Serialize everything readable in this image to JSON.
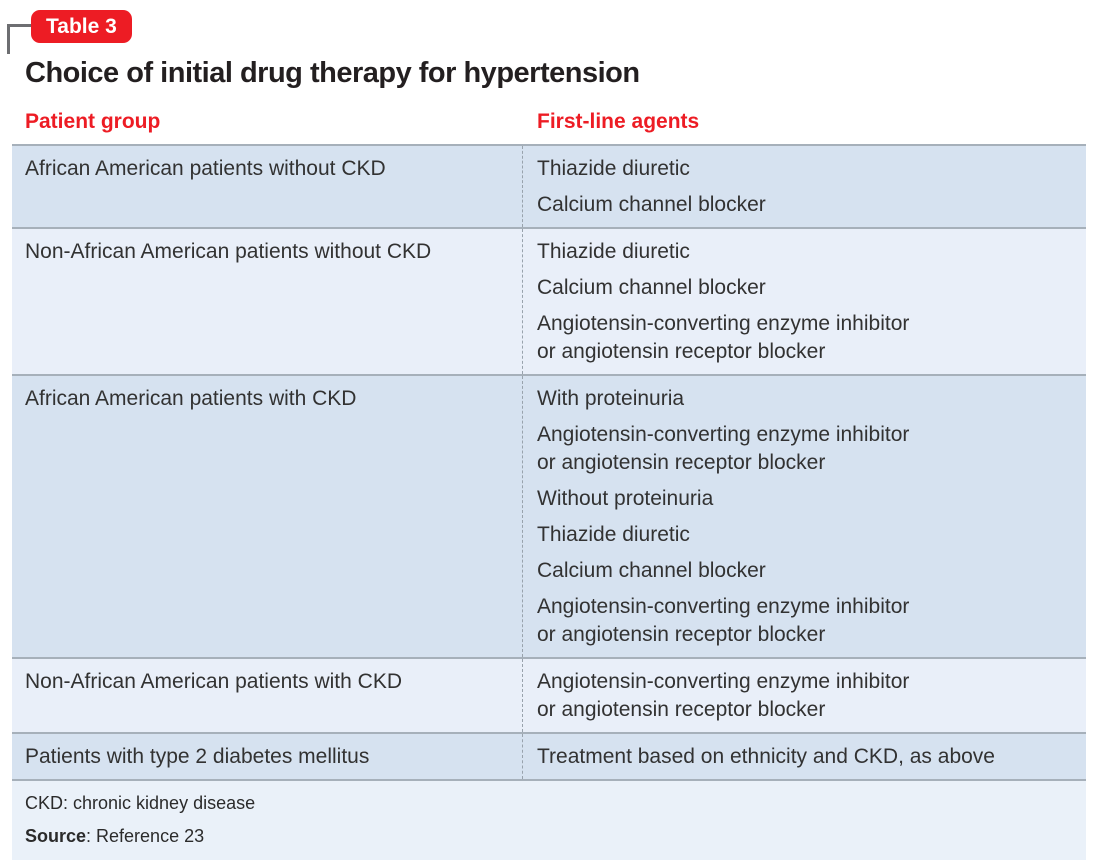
{
  "badge": {
    "label": "Table 3"
  },
  "title": "Choice of initial drug therapy for hypertension",
  "table": {
    "columns": [
      {
        "label": "Patient group"
      },
      {
        "label": "First-line agents"
      }
    ],
    "rows": [
      {
        "patient_group": "African American patients without CKD",
        "agents": [
          [
            "Thiazide diuretic"
          ],
          [
            "Calcium channel blocker"
          ]
        ]
      },
      {
        "patient_group": "Non-African American patients without CKD",
        "agents": [
          [
            "Thiazide diuretic"
          ],
          [
            "Calcium channel blocker"
          ],
          [
            "Angiotensin-converting enzyme inhibitor",
            "or angiotensin receptor blocker"
          ]
        ]
      },
      {
        "patient_group": "African American patients with CKD",
        "agents": [
          [
            "With proteinuria"
          ],
          [
            "Angiotensin-converting enzyme inhibitor",
            "or angiotensin receptor blocker"
          ],
          [
            "Without proteinuria"
          ],
          [
            "Thiazide diuretic"
          ],
          [
            "Calcium channel blocker"
          ],
          [
            "Angiotensin-converting enzyme inhibitor",
            "or angiotensin receptor blocker"
          ]
        ]
      },
      {
        "patient_group": "Non-African American patients with CKD",
        "agents": [
          [
            "Angiotensin-converting enzyme inhibitor",
            "or angiotensin receptor blocker"
          ]
        ]
      },
      {
        "patient_group": "Patients with type 2 diabetes mellitus",
        "agents": [
          [
            "Treatment based on ethnicity and CKD, as above"
          ]
        ]
      }
    ]
  },
  "footer": {
    "footnote": "CKD: chronic kidney disease",
    "source_label": "Source",
    "source_value": ": Reference 23"
  },
  "colors": {
    "accent_red": "#ed1c24",
    "row_dark_blue": "#d6e2f0",
    "row_light_blue": "#e9eff9",
    "footer_blue": "#eaf1f9",
    "row_border_gray": "#a6b0ba",
    "divider_gray": "#98a2ac",
    "bracket_gray": "#6d6e71",
    "title_text": "#231f20"
  }
}
